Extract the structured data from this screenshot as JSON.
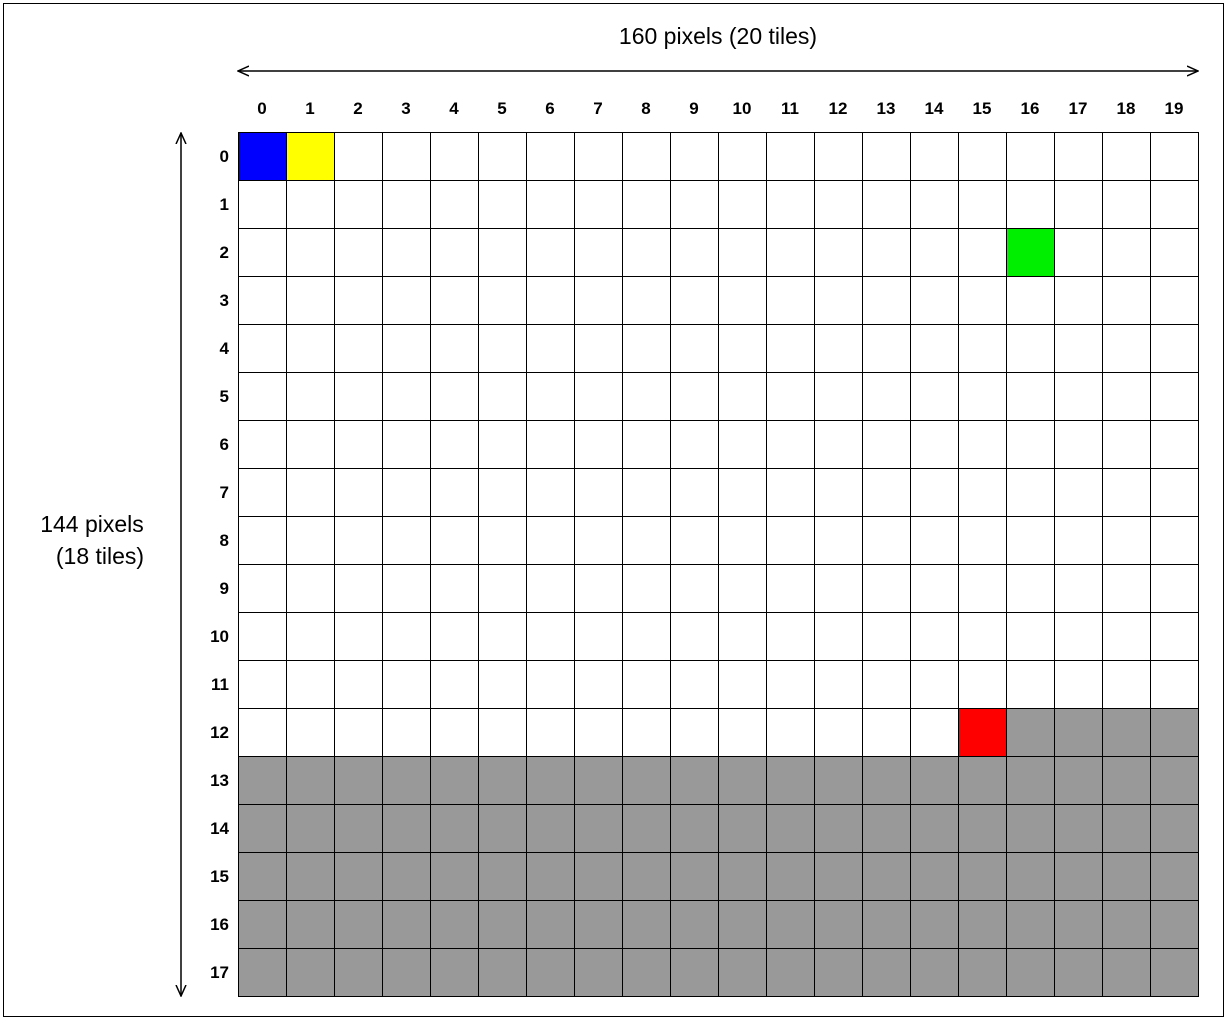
{
  "width_label": "160 pixels (20 tiles)",
  "height_label_line1": "144 pixels",
  "height_label_line2": "(18 tiles)",
  "columns": [
    "0",
    "1",
    "2",
    "3",
    "4",
    "5",
    "6",
    "7",
    "8",
    "9",
    "10",
    "11",
    "12",
    "13",
    "14",
    "15",
    "16",
    "17",
    "18",
    "19"
  ],
  "rows": [
    "0",
    "1",
    "2",
    "3",
    "4",
    "5",
    "6",
    "7",
    "8",
    "9",
    "10",
    "11",
    "12",
    "13",
    "14",
    "15",
    "16",
    "17"
  ],
  "colors": {
    "empty": "#ffffff",
    "filled": "#999999",
    "blue": "#0000ff",
    "yellow": "#ffff00",
    "green": "#00ee00",
    "red": "#ff0000",
    "line": "#000000"
  },
  "highlighted_tiles": [
    {
      "row": 0,
      "col": 0,
      "color": "blue"
    },
    {
      "row": 0,
      "col": 1,
      "color": "yellow"
    },
    {
      "row": 2,
      "col": 16,
      "color": "green"
    },
    {
      "row": 12,
      "col": 15,
      "color": "red"
    }
  ],
  "filled_tiles": [
    {
      "row": 12,
      "col_from": 16,
      "col_to": 19
    },
    {
      "row_from": 13,
      "row_to": 17,
      "col_from": 0,
      "col_to": 19
    }
  ]
}
